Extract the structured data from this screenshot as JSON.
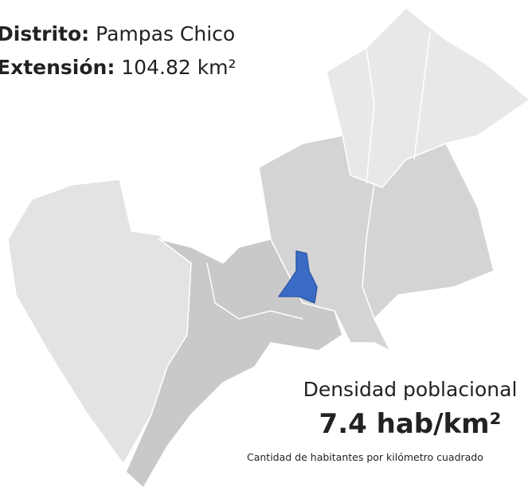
{
  "header": {
    "district_label": "Distrito:",
    "district_name": "Pampas Chico",
    "extension_label": "Extensión:",
    "extension_value": "104.82 km²"
  },
  "density": {
    "title": "Densidad poblacional",
    "value": "7.4 hab/km²",
    "caption": "Cantidad de habitantes por kilómetro cuadrado"
  }
}
